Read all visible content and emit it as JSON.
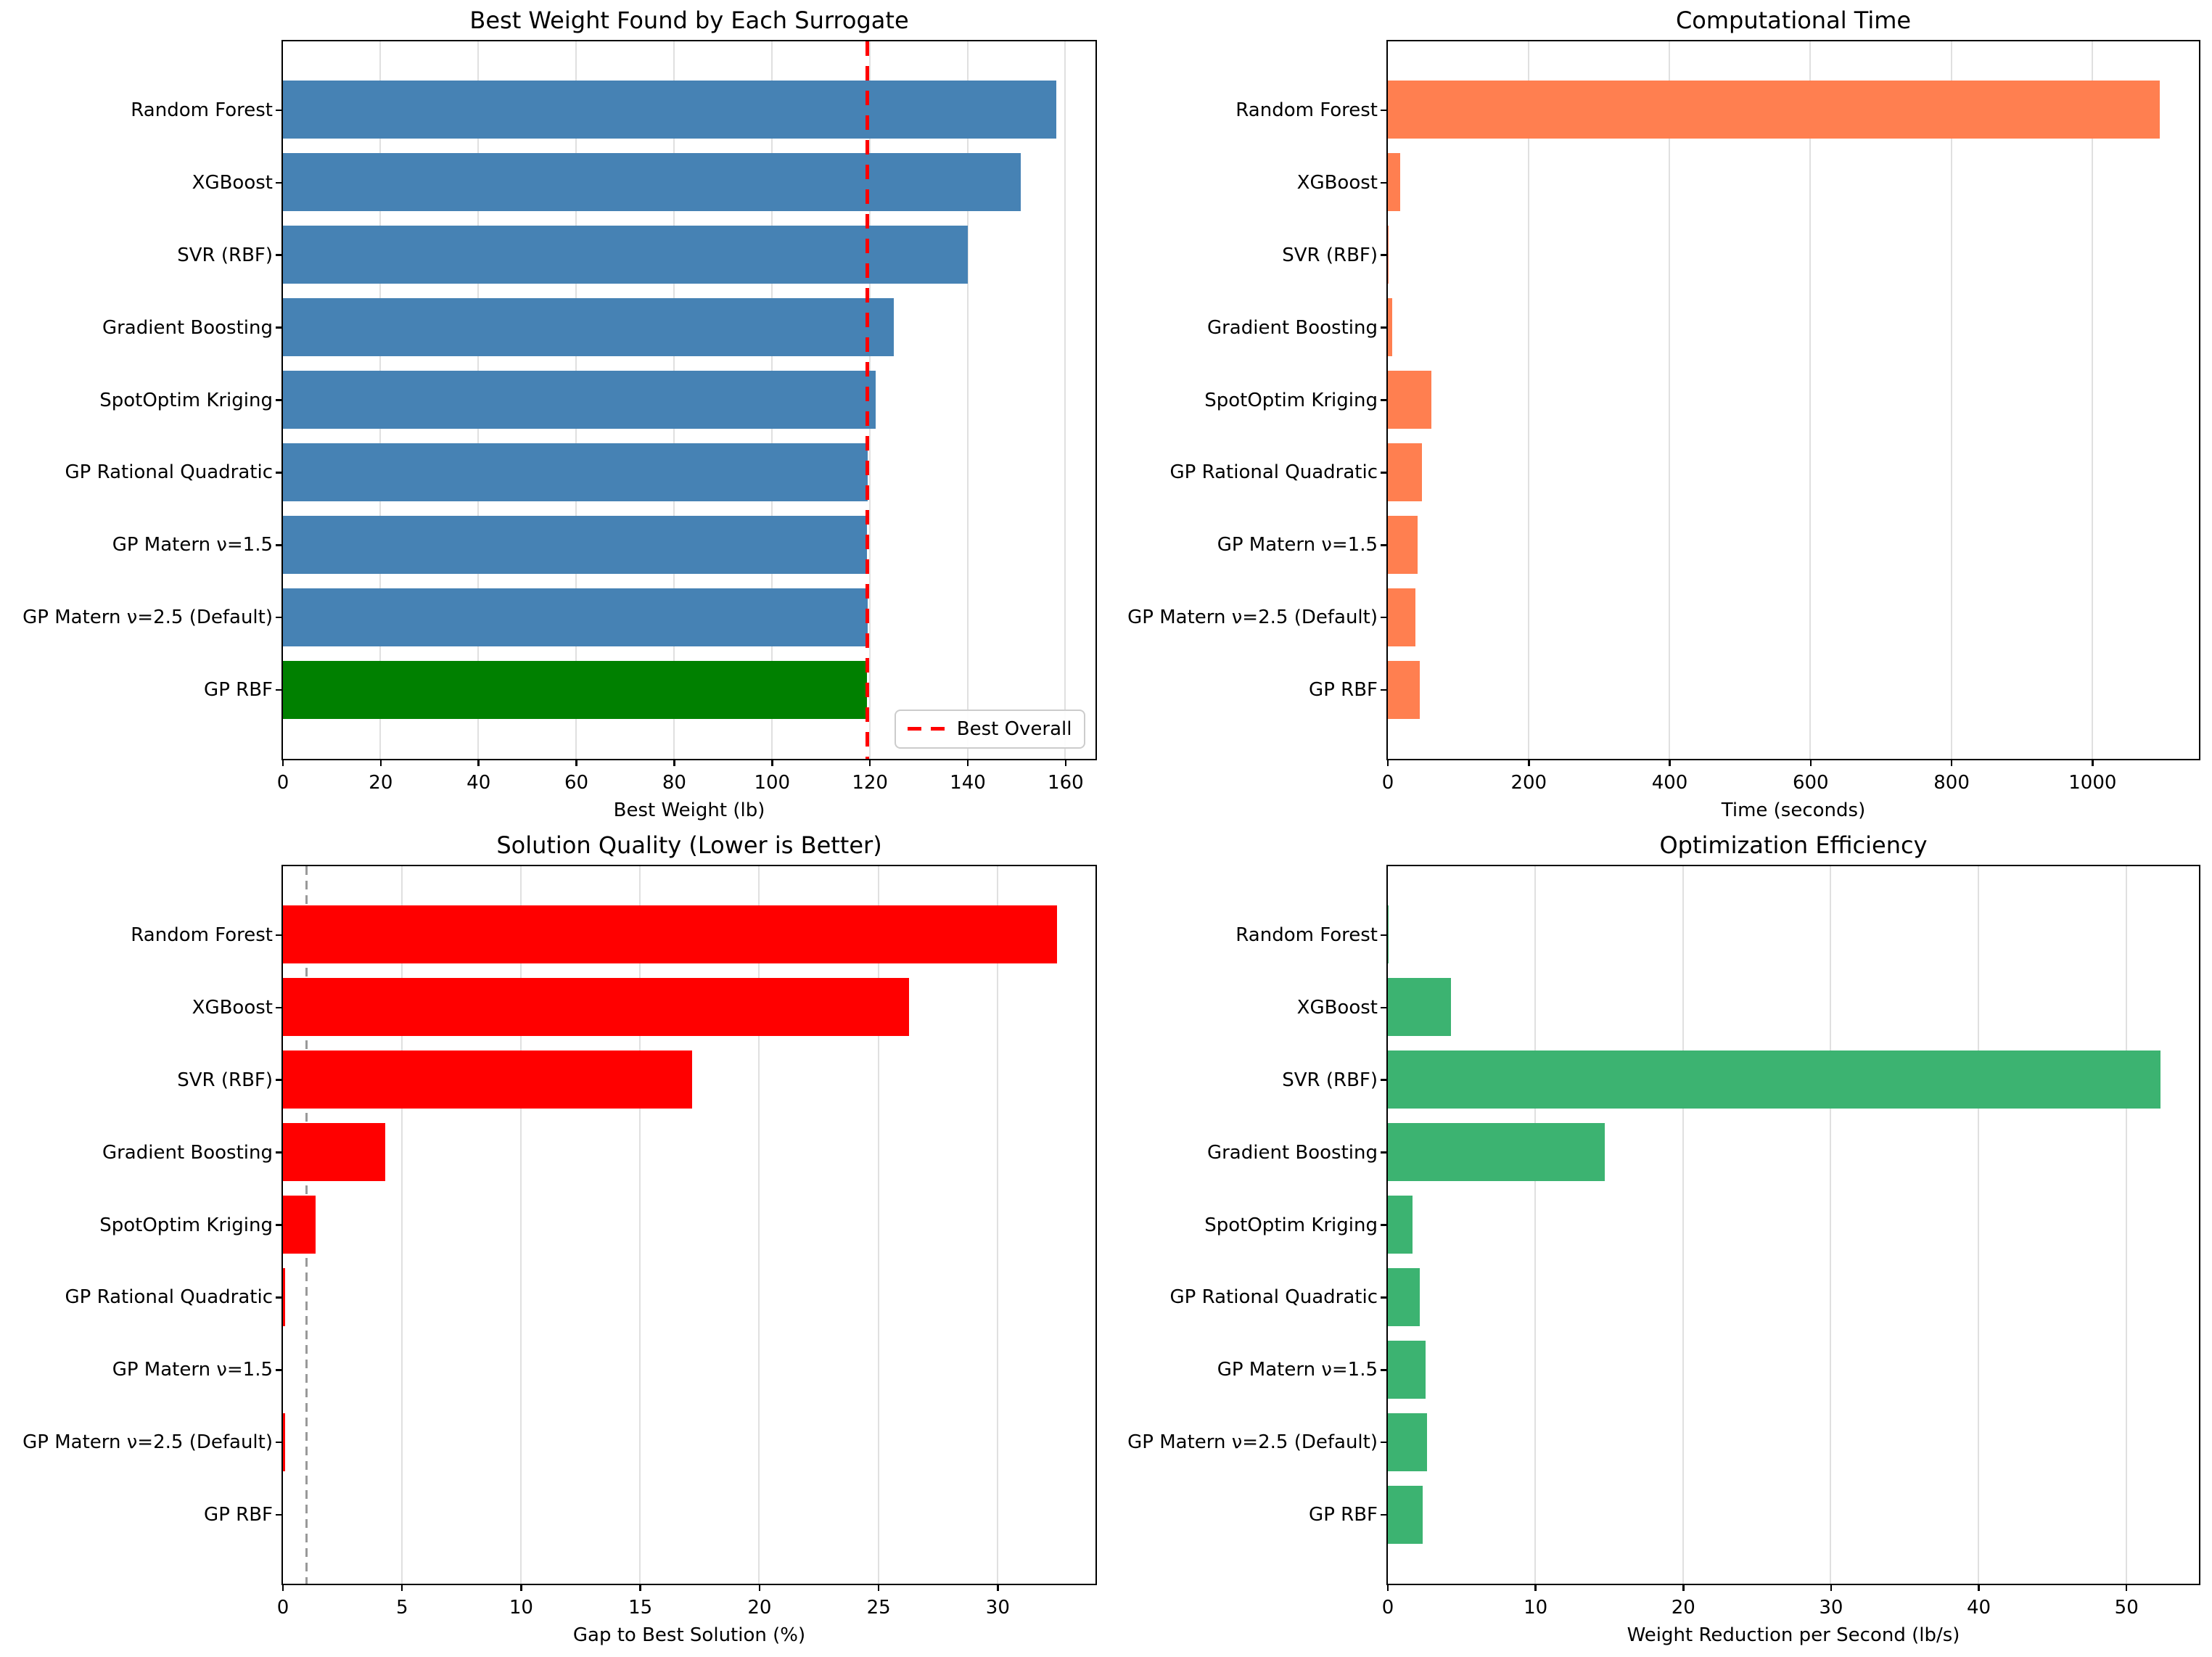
{
  "figure": {
    "background": "#ffffff",
    "description": "2x2 grid of horizontal bar charts comparing surrogate models"
  },
  "colors": {
    "steelblue": "#4682B4",
    "highlight_green": "#008000",
    "coral": "#FF7F50",
    "red": "#FF0000",
    "mediumseagreen": "#3CB371",
    "grid": "#e0e0e0",
    "spine": "#000000",
    "best_line": "#ff0000",
    "threshold_line": "#999999"
  },
  "categories": [
    "Random Forest",
    "XGBoost",
    "SVR (RBF)",
    "Gradient Boosting",
    "SpotOptim Kriging",
    "GP Rational Quadratic",
    "GP Matern ν=1.5",
    "GP Matern ν=2.5 (Default)",
    "GP RBF"
  ],
  "chart_data": [
    {
      "id": "best-weight",
      "type": "bar",
      "orientation": "horizontal",
      "title": "Best Weight Found by Each Surrogate",
      "xlabel": "Best Weight (lb)",
      "ylabel": "",
      "categories": [
        "Random Forest",
        "XGBoost",
        "SVR (RBF)",
        "Gradient Boosting",
        "SpotOptim Kriging",
        "GP Rational Quadratic",
        "GP Matern ν=1.5",
        "GP Matern ν=2.5 (Default)",
        "GP RBF"
      ],
      "values": [
        158.2,
        150.9,
        140.0,
        124.9,
        121.2,
        119.6,
        119.5,
        119.6,
        119.5
      ],
      "bar_color": "#4682B4",
      "highlight": {
        "index": 8,
        "color": "#008000"
      },
      "xlim": [
        0,
        166.1
      ],
      "xticks": [
        0,
        20,
        40,
        60,
        80,
        100,
        120,
        140,
        160
      ],
      "grid": true,
      "vline": {
        "x": 119.5,
        "color": "#ff0000",
        "style": "dashed",
        "width": 5,
        "label": "Best Overall",
        "above_bars": true
      },
      "legend": {
        "visible": true,
        "position": "lower right",
        "entries": [
          "Best Overall"
        ]
      }
    },
    {
      "id": "computational-time",
      "type": "bar",
      "orientation": "horizontal",
      "title": "Computational Time",
      "xlabel": "Time (seconds)",
      "ylabel": "",
      "categories": [
        "Random Forest",
        "XGBoost",
        "SVR (RBF)",
        "Gradient Boosting",
        "SpotOptim Kriging",
        "GP Rational Quadratic",
        "GP Matern ν=1.5",
        "GP Matern ν=2.5 (Default)",
        "GP RBF"
      ],
      "values": [
        1096,
        18,
        1.5,
        7,
        62,
        49,
        43,
        40,
        46
      ],
      "bar_color": "#FF7F50",
      "xlim": [
        0,
        1151
      ],
      "xticks": [
        0,
        200,
        400,
        600,
        800,
        1000
      ],
      "grid": true
    },
    {
      "id": "solution-quality",
      "type": "bar",
      "orientation": "horizontal",
      "title": "Solution Quality (Lower is Better)",
      "xlabel": "Gap to Best Solution (%)",
      "ylabel": "",
      "categories": [
        "Random Forest",
        "XGBoost",
        "SVR (RBF)",
        "Gradient Boosting",
        "SpotOptim Kriging",
        "GP Rational Quadratic",
        "GP Matern ν=1.5",
        "GP Matern ν=2.5 (Default)",
        "GP RBF"
      ],
      "values": [
        32.5,
        26.3,
        17.2,
        4.3,
        1.4,
        0.1,
        0.0,
        0.1,
        0.0
      ],
      "bar_color": "#FF0000",
      "xlim": [
        0,
        34.1
      ],
      "xticks": [
        0,
        5,
        10,
        15,
        20,
        25,
        30
      ],
      "grid": true,
      "vline": {
        "x": 1.0,
        "color": "#999999",
        "style": "dashed",
        "width": 3,
        "label": "",
        "above_bars": false
      }
    },
    {
      "id": "optimization-efficiency",
      "type": "bar",
      "orientation": "horizontal",
      "title": "Optimization Efficiency",
      "xlabel": "Weight Reduction per Second (lb/s)",
      "ylabel": "",
      "categories": [
        "Random Forest",
        "XGBoost",
        "SVR (RBF)",
        "Gradient Boosting",
        "SpotOptim Kriging",
        "GP Rational Quadratic",
        "GP Matern ν=1.5",
        "GP Matern ν=2.5 (Default)",
        "GP RBF"
      ],
      "values": [
        0.07,
        4.3,
        52.3,
        14.7,
        1.7,
        2.2,
        2.6,
        2.7,
        2.4
      ],
      "bar_color": "#3CB371",
      "xlim": [
        0,
        54.9
      ],
      "xticks": [
        0,
        10,
        20,
        30,
        40,
        50
      ],
      "grid": true
    }
  ]
}
